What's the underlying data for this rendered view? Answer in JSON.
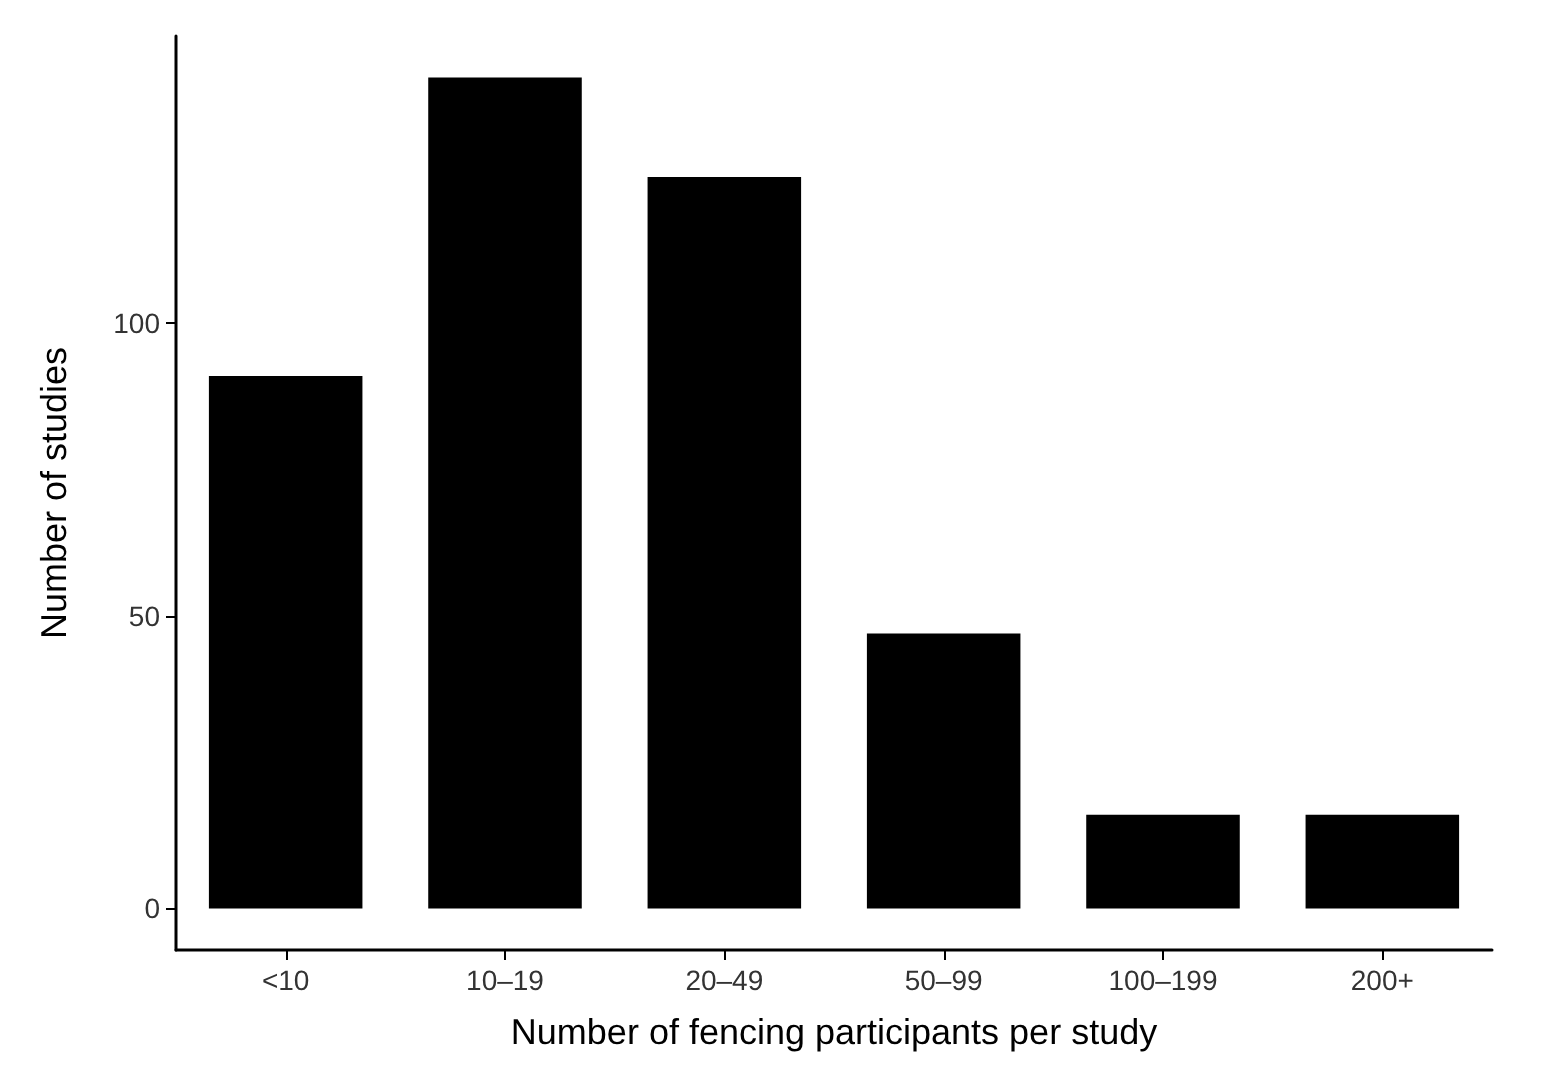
{
  "chart_data": {
    "type": "bar",
    "xlabel": "Number of fencing participants per study",
    "ylabel": "Number of studies",
    "categories": [
      "<10",
      "10–19",
      "20–49",
      "50–99",
      "100–199",
      "200+"
    ],
    "values": [
      91,
      142,
      125,
      47,
      16,
      16
    ],
    "color": "#000000",
    "ylim": [
      -7.1,
      149.1
    ],
    "yticks": [
      0,
      50,
      100
    ],
    "grid": false
  }
}
